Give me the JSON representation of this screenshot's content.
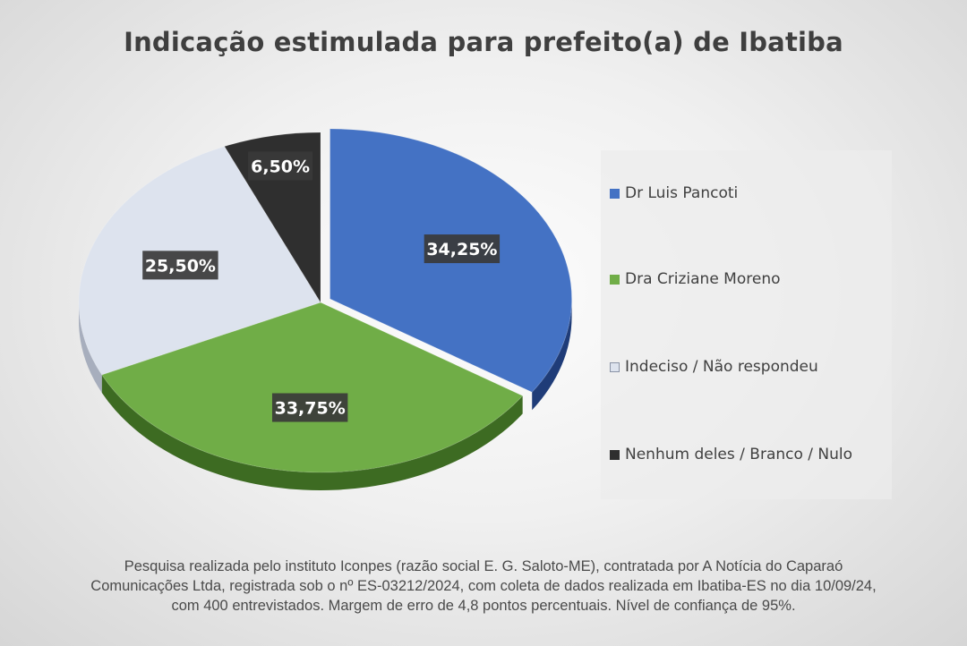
{
  "chart_data": {
    "type": "pie",
    "title": "Indicação estimulada para prefeito(a) de Ibatiba",
    "categories": [
      "Dr Luis Pancoti",
      "Dra Criziane Moreno",
      "Indeciso / Não respondeu",
      "Nenhum deles / Branco / Nulo"
    ],
    "values": [
      34.25,
      33.75,
      25.5,
      6.5
    ],
    "data_labels": [
      "34,25%",
      "33,75%",
      "25,50%",
      "6,50%"
    ],
    "colors": [
      "#4472c4",
      "#70ad47",
      "#dde3ee",
      "#2f2f2f"
    ],
    "side_colors": [
      "#1f3c78",
      "#3d6b22",
      "#a7aebd",
      "#1a1a1a"
    ],
    "legend_position": "right",
    "exploded_slice": "Dr Luis Pancoti"
  },
  "footnote": "Pesquisa realizada pelo instituto Iconpes (razão social E. G. Saloto-ME), contratada por A Notícia do Caparaó Comunicações Ltda, registrada sob o nº ES-03212/2024, com coleta de dados realizada em Ibatiba-ES no dia 10/09/24, com 400 entrevistados. Margem de erro de 4,8 pontos percentuais. Nível de confiança de 95%."
}
